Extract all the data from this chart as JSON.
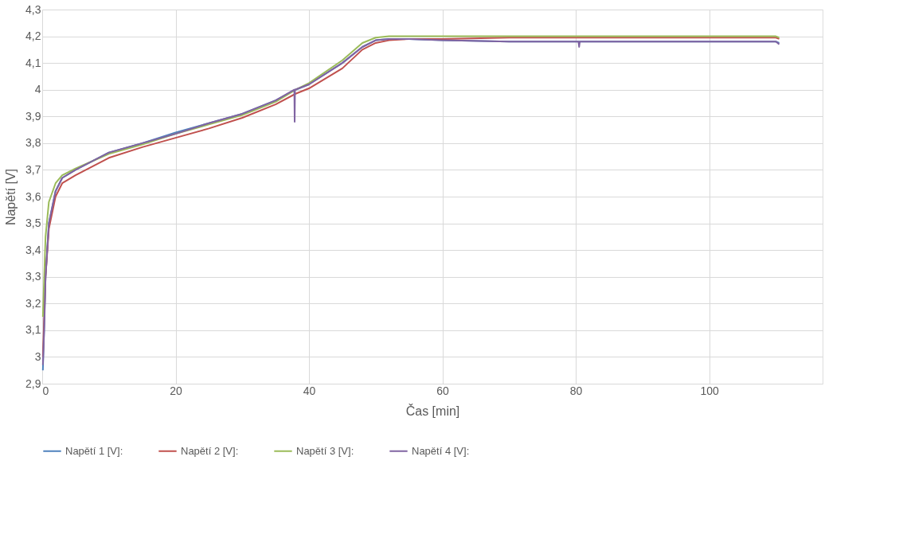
{
  "chart_data": {
    "type": "line",
    "xlabel": "Čas [min]",
    "ylabel": "Napětí [V]",
    "xlim": [
      0,
      117
    ],
    "xticks": [
      0,
      20,
      40,
      60,
      80,
      100
    ],
    "ylim": [
      2.9,
      4.3
    ],
    "yticks": [
      {
        "value": 2.9,
        "label": "2,9"
      },
      3,
      {
        "value": 3.1,
        "label": "3,1"
      },
      {
        "value": 3.2,
        "label": "3,2"
      },
      {
        "value": 3.3,
        "label": "3,3"
      },
      {
        "value": 3.4,
        "label": "3,4"
      },
      {
        "value": 3.5,
        "label": "3,5"
      },
      {
        "value": 3.6,
        "label": "3,6"
      },
      {
        "value": 3.7,
        "label": "3,7"
      },
      {
        "value": 3.8,
        "label": "3,8"
      },
      {
        "value": 3.9,
        "label": "3,9"
      },
      4,
      {
        "value": 4.1,
        "label": "4,1"
      },
      {
        "value": 4.2,
        "label": "4,2"
      },
      {
        "value": 4.3,
        "label": "4,3"
      }
    ],
    "grid": true,
    "legend": "bottom",
    "marker": "none",
    "line_style": "solid",
    "series": [
      {
        "name": "Napětí 1 [V]:",
        "color": "#4f81bd",
        "x": [
          0.1,
          0.5,
          1,
          2,
          3,
          5,
          10,
          15,
          20,
          25,
          30,
          35,
          38,
          40,
          45,
          48,
          50,
          52,
          55,
          60,
          70,
          80,
          90,
          100,
          110,
          110.5
        ],
        "values": [
          2.95,
          3.3,
          3.5,
          3.62,
          3.67,
          3.7,
          3.765,
          3.8,
          3.84,
          3.875,
          3.91,
          3.96,
          4.0,
          4.02,
          4.1,
          4.16,
          4.185,
          4.19,
          4.19,
          4.185,
          4.18,
          4.18,
          4.18,
          4.18,
          4.18,
          4.175
        ]
      },
      {
        "name": "Napětí 2 [V]:",
        "color": "#c0504d",
        "x": [
          0.1,
          0.5,
          1,
          2,
          3,
          5,
          10,
          15,
          20,
          25,
          30,
          35,
          38,
          40,
          45,
          48,
          50,
          52,
          55,
          60,
          70,
          80,
          90,
          100,
          110,
          110.5
        ],
        "values": [
          3.0,
          3.3,
          3.48,
          3.6,
          3.65,
          3.68,
          3.745,
          3.785,
          3.82,
          3.855,
          3.895,
          3.945,
          3.985,
          4.005,
          4.08,
          4.15,
          4.175,
          4.185,
          4.19,
          4.19,
          4.195,
          4.195,
          4.195,
          4.195,
          4.195,
          4.19
        ]
      },
      {
        "name": "Napětí 3 [V]:",
        "color": "#9bbb59",
        "x": [
          0.1,
          0.5,
          1,
          2,
          3,
          5,
          10,
          15,
          20,
          25,
          30,
          35,
          38,
          40,
          45,
          48,
          50,
          52,
          55,
          60,
          70,
          80,
          90,
          100,
          110,
          110.5
        ],
        "values": [
          3.15,
          3.45,
          3.58,
          3.65,
          3.68,
          3.705,
          3.76,
          3.795,
          3.835,
          3.87,
          3.905,
          3.955,
          4.0,
          4.025,
          4.11,
          4.175,
          4.195,
          4.2,
          4.2,
          4.2,
          4.2,
          4.2,
          4.2,
          4.2,
          4.2,
          4.195
        ]
      },
      {
        "name": "Napětí 4 [V]:",
        "color": "#8064a2",
        "x": [
          0.1,
          0.3,
          0.5,
          1,
          2,
          3,
          5,
          10,
          15,
          20,
          25,
          30,
          35,
          37.8,
          37.85,
          37.9,
          40,
          45,
          48,
          50,
          52,
          55,
          60,
          70,
          80.4,
          80.5,
          80.6,
          90,
          100,
          110,
          110.5
        ],
        "values": [
          2.97,
          3.1,
          3.3,
          3.5,
          3.62,
          3.67,
          3.7,
          3.765,
          3.8,
          3.835,
          3.875,
          3.91,
          3.96,
          4.0,
          3.88,
          4.0,
          4.02,
          4.1,
          4.16,
          4.185,
          4.19,
          4.19,
          4.185,
          4.18,
          4.18,
          4.16,
          4.18,
          4.18,
          4.18,
          4.18,
          4.17
        ]
      }
    ]
  }
}
